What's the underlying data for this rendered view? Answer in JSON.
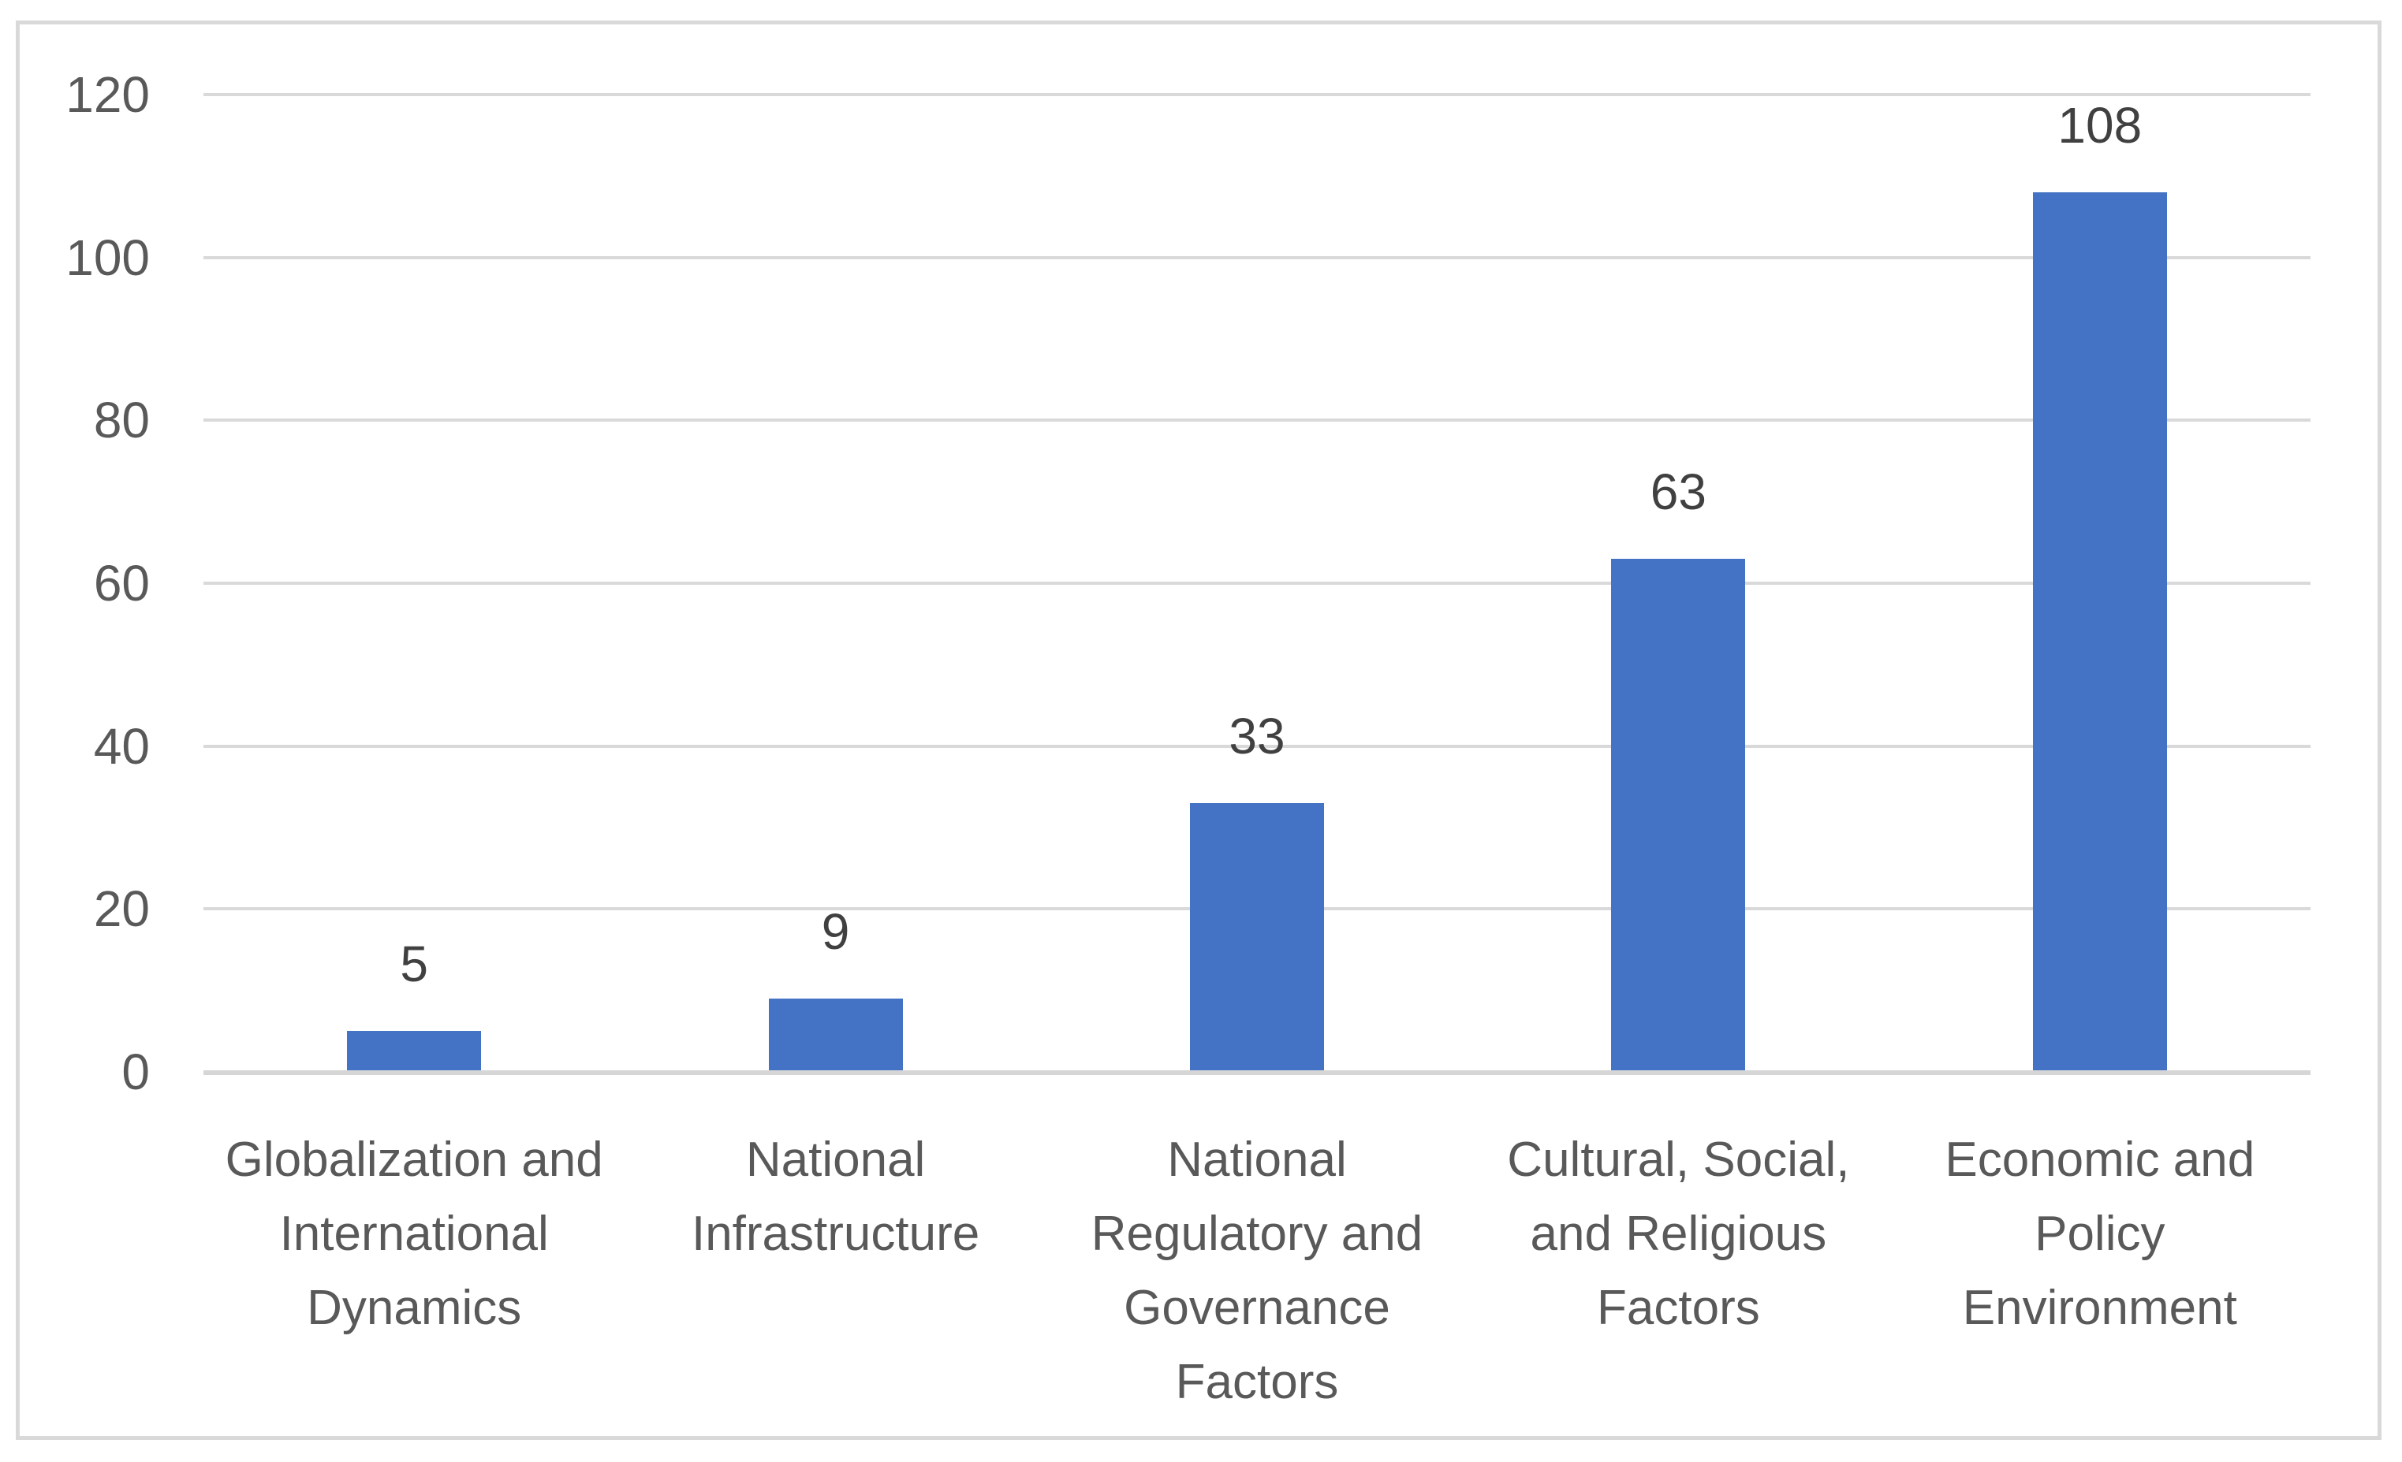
{
  "chart_data": {
    "type": "bar",
    "title": "",
    "xlabel": "",
    "ylabel": "",
    "categories": [
      "Globalization and International Dynamics",
      "National Infrastructure",
      "National Regulatory and Governance Factors",
      "Cultural, Social, and Religious Factors",
      "Economic and Policy Environment"
    ],
    "values": [
      5,
      9,
      33,
      63,
      108
    ],
    "data_labels": [
      "5",
      "9",
      "33",
      "63",
      "108"
    ],
    "category_label_lines": [
      [
        "Globalization and",
        "International",
        "Dynamics"
      ],
      [
        "National",
        "Infrastructure"
      ],
      [
        "National",
        "Regulatory and",
        "Governance",
        "Factors"
      ],
      [
        "Cultural, Social,",
        "and Religious",
        "Factors"
      ],
      [
        "Economic and",
        "Policy",
        "Environment"
      ]
    ],
    "ylim": [
      0,
      120
    ],
    "y_ticks": [
      0,
      20,
      40,
      60,
      80,
      100,
      120
    ],
    "grid": "horizontal",
    "legend": "none",
    "data_labels_shown": true
  },
  "colors": {
    "bar": "#4472C4",
    "gridline": "#D9D9D9",
    "axis_line": "#D6D6D6",
    "tick_label": "#595959",
    "category_label": "#595959",
    "data_label": "#404040",
    "frame_border": "#D9D9D9",
    "background": "#FFFFFF"
  }
}
